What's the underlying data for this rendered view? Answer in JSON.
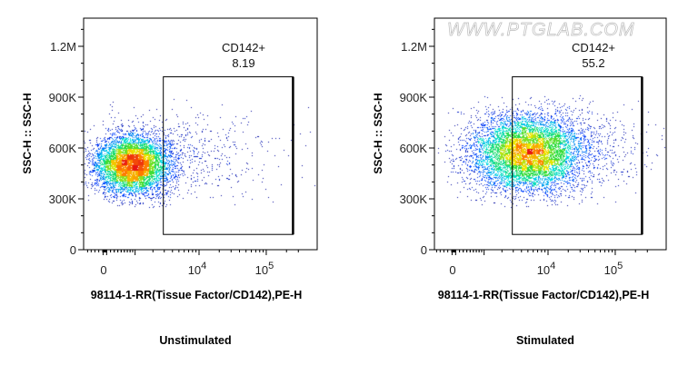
{
  "chart_data": [
    {
      "type": "scatter",
      "title": "Unstimulated",
      "xlabel": "98114-1-RR(Tissue Factor/CD142),PE-H",
      "ylabel": "SSC-H :: SSC-H",
      "x_scale": "biexponential",
      "xlim": [
        -300,
        300000
      ],
      "ylim": [
        0,
        1350000
      ],
      "y_ticks": [
        {
          "value": 0,
          "label": "0"
        },
        {
          "value": 300000,
          "label": "300K"
        },
        {
          "value": 600000,
          "label": "600K"
        },
        {
          "value": 900000,
          "label": "900K"
        },
        {
          "value": 1200000,
          "label": "1.2M"
        }
      ],
      "x_ticks": [
        {
          "value": 0,
          "label": "0"
        },
        {
          "value": 10000,
          "label": "10",
          "exp": "4"
        },
        {
          "value": 100000,
          "label": "10",
          "exp": "5"
        }
      ],
      "gate": {
        "name": "CD142+",
        "percent": "8.19",
        "x_range": [
          2900,
          250000
        ],
        "y_range": [
          90000,
          1020000
        ]
      },
      "populations": [
        {
          "center_x": 900,
          "center_y": 500000,
          "sd_decades": 0.28,
          "sd_y": 85000,
          "n": 6500
        },
        {
          "center_x": 6000,
          "center_y": 560000,
          "sd_decades": 0.7,
          "sd_y": 130000,
          "n": 600
        }
      ],
      "seed": 7
    },
    {
      "type": "scatter",
      "title": "Stimulated",
      "xlabel": "98114-1-RR(Tissue Factor/CD142),PE-H",
      "ylabel": "SSC-H :: SSC-H",
      "x_scale": "biexponential",
      "xlim": [
        -300,
        300000
      ],
      "ylim": [
        0,
        1350000
      ],
      "y_ticks": [
        {
          "value": 0,
          "label": "0"
        },
        {
          "value": 300000,
          "label": "300K"
        },
        {
          "value": 600000,
          "label": "600K"
        },
        {
          "value": 900000,
          "label": "900K"
        },
        {
          "value": 1200000,
          "label": "1.2M"
        }
      ],
      "x_ticks": [
        {
          "value": 0,
          "label": "0"
        },
        {
          "value": 10000,
          "label": "10",
          "exp": "4"
        },
        {
          "value": 100000,
          "label": "10",
          "exp": "5"
        }
      ],
      "gate": {
        "name": "CD142+",
        "percent": "55.2",
        "x_range": [
          2900,
          250000
        ],
        "y_range": [
          90000,
          1020000
        ]
      },
      "populations": [
        {
          "center_x": 4800,
          "center_y": 570000,
          "sd_decades": 0.42,
          "sd_y": 110000,
          "n": 7500
        },
        {
          "center_x": 20000,
          "center_y": 600000,
          "sd_decades": 0.6,
          "sd_y": 130000,
          "n": 700
        }
      ],
      "seed": 13,
      "watermark": "WWW.PTGLAB.COM"
    }
  ]
}
